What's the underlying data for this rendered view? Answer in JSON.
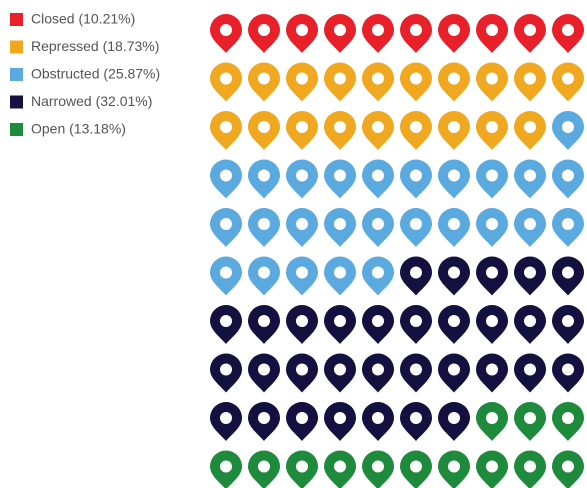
{
  "chart_data": {
    "type": "waffle",
    "columns": 10,
    "series": [
      {
        "name": "Closed",
        "color": "#e8202a",
        "values": [
          10.21
        ],
        "value_labels": [
          "Closed (10.21%)"
        ],
        "icons": 10
      },
      {
        "name": "Repressed",
        "color": "#f0a820",
        "values": [
          18.73
        ],
        "value_labels": [
          "Repressed (18.73%)"
        ],
        "icons": 19
      },
      {
        "name": "Obstructed",
        "color": "#5aaae0",
        "values": [
          25.87
        ],
        "value_labels": [
          "Obstructed (25.87%)"
        ],
        "icons": 26
      },
      {
        "name": "Narrowed",
        "color": "#14103f",
        "values": [
          32.01
        ],
        "value_labels": [
          "Narrowed (32.01%)"
        ],
        "icons": 32
      },
      {
        "name": "Open",
        "color": "#1e8a3c",
        "values": [
          13.18
        ],
        "value_labels": [
          "Open (13.18%)"
        ],
        "icons": 13
      }
    ]
  }
}
